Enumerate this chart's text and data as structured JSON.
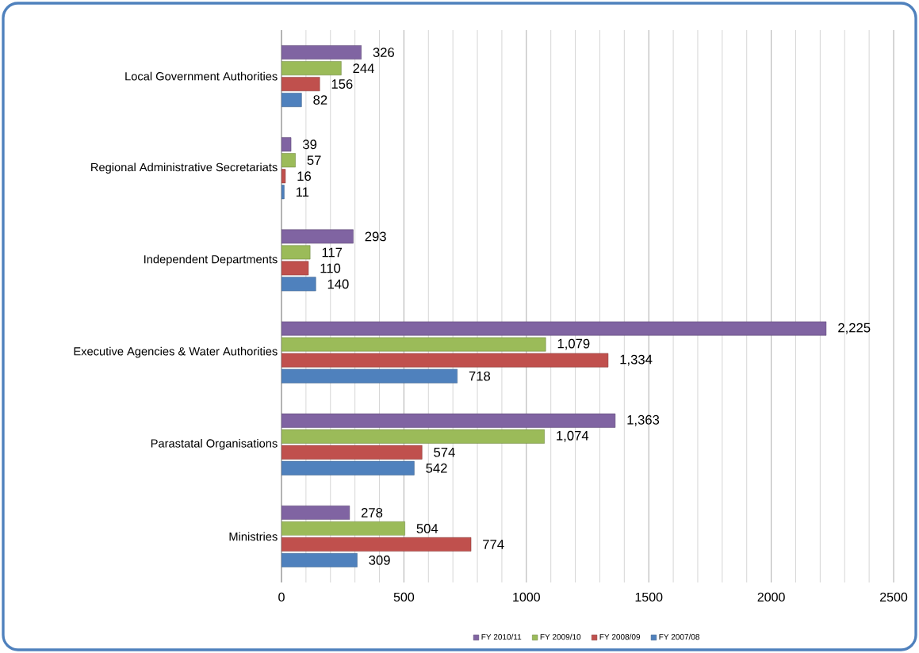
{
  "chart_data": {
    "type": "bar",
    "orientation": "horizontal",
    "categories": [
      "Local Government Authorities",
      "Regional Administrative Secretariats",
      "Independent Departments",
      "Executive Agencies & Water Authorities",
      "Parastatal Organisations",
      "Ministries"
    ],
    "series": [
      {
        "name": "FY 2010/11",
        "color": "#8064a2",
        "values": [
          326,
          39,
          293,
          2225,
          1363,
          278
        ],
        "value_labels": [
          "326",
          "39",
          "293",
          "2,225",
          "1,363",
          "278"
        ]
      },
      {
        "name": "FY 2009/10",
        "color": "#9bbb59",
        "values": [
          244,
          57,
          117,
          1079,
          1074,
          504
        ],
        "value_labels": [
          "244",
          "57",
          "117",
          "1,079",
          "1,074",
          "504"
        ]
      },
      {
        "name": "FY 2008/09",
        "color": "#c0504d",
        "values": [
          156,
          16,
          110,
          1334,
          574,
          774
        ],
        "value_labels": [
          "156",
          "16",
          "110",
          "1,334",
          "574",
          "774"
        ]
      },
      {
        "name": "FY 2007/08",
        "color": "#4f81bd",
        "values": [
          82,
          11,
          140,
          718,
          542,
          309
        ],
        "value_labels": [
          "82",
          "11",
          "140",
          "718",
          "542",
          "309"
        ]
      }
    ],
    "xlim": [
      0,
      2500
    ],
    "xticks": [
      0,
      500,
      1000,
      1500,
      2000,
      2500
    ],
    "grid": "x",
    "legend": "bottom"
  }
}
